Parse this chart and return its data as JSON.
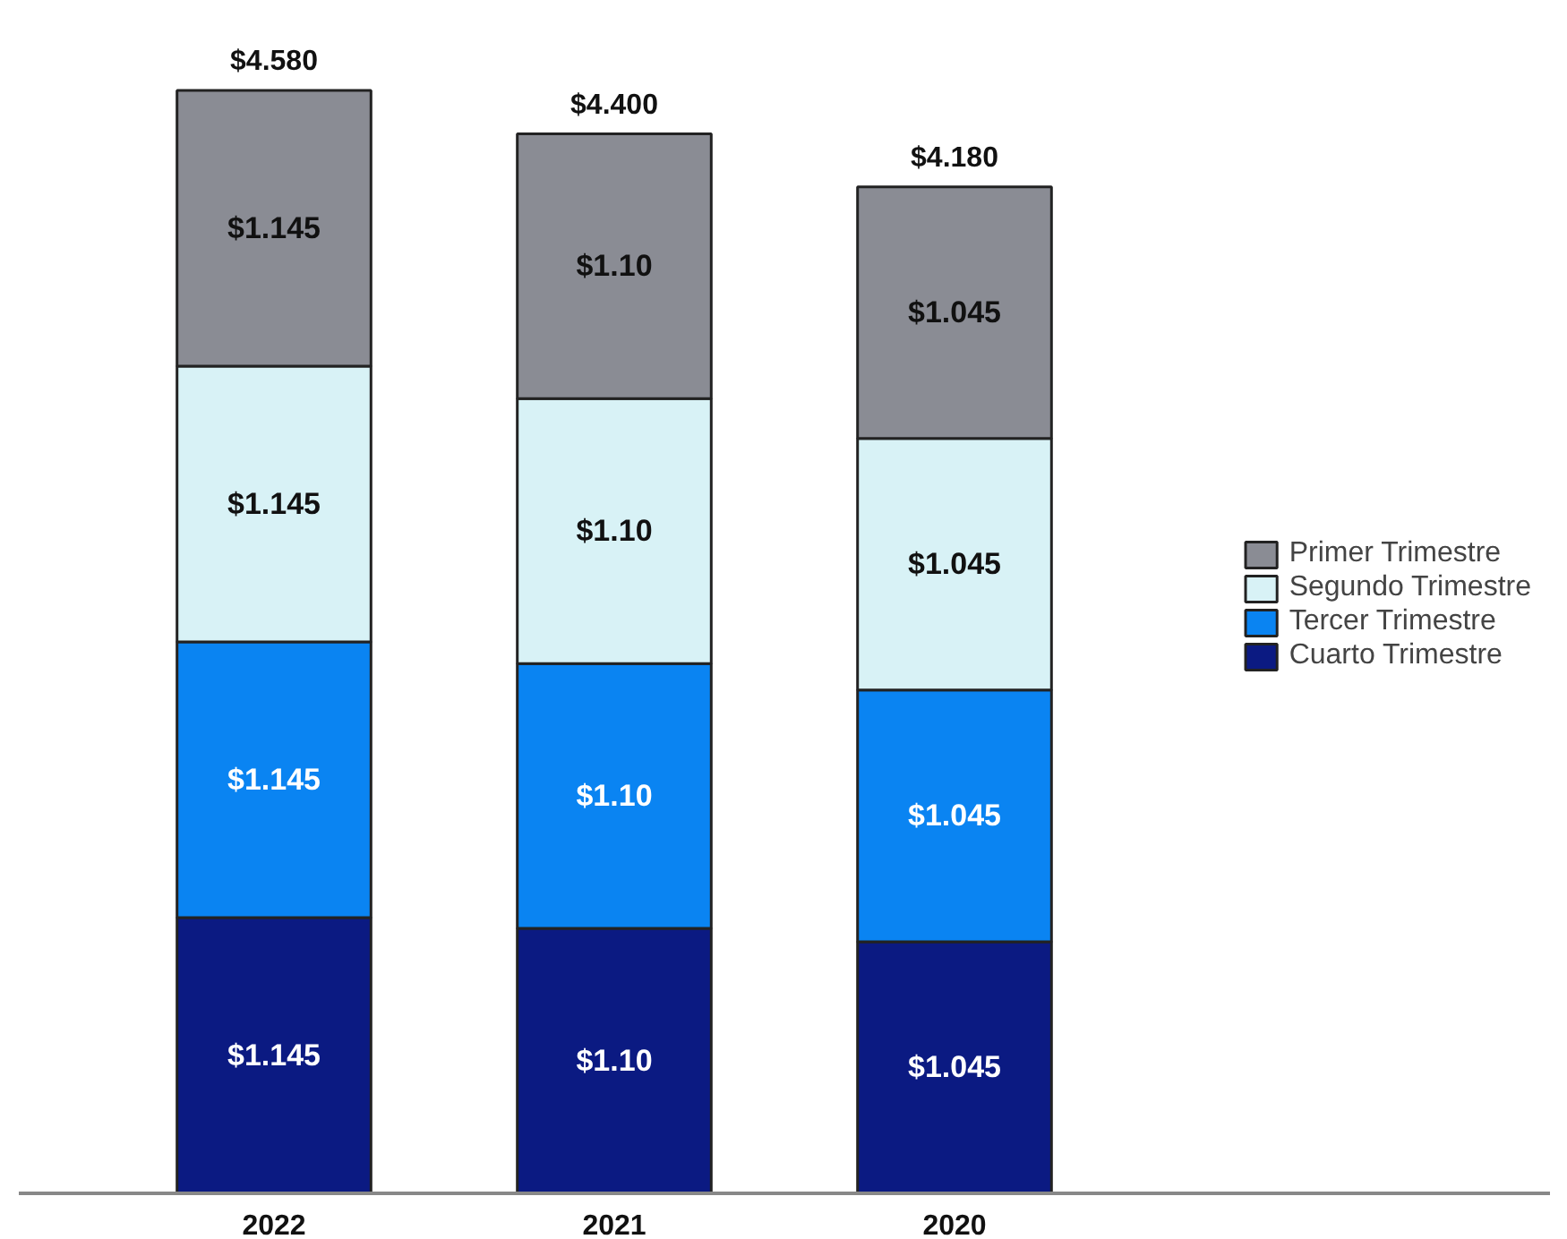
{
  "chart_data": {
    "type": "bar",
    "stacked": true,
    "categories": [
      "2022",
      "2021",
      "2020"
    ],
    "series": [
      {
        "name": "Cuarto Trimestre",
        "color": "#0b1a82",
        "values": [
          1.145,
          1.1,
          1.045
        ],
        "value_labels": [
          "$1.145",
          "$1.10",
          "$1.045"
        ]
      },
      {
        "name": "Tercer Trimestre",
        "color": "#0a84f2",
        "values": [
          1.145,
          1.1,
          1.045
        ],
        "value_labels": [
          "$1.145",
          "$1.10",
          "$1.045"
        ]
      },
      {
        "name": "Segundo Trimestre",
        "color": "#d8f2f6",
        "values": [
          1.145,
          1.1,
          1.045
        ],
        "value_labels": [
          "$1.145",
          "$1.10",
          "$1.045"
        ]
      },
      {
        "name": "Primer Trimestre",
        "color": "#8a8c94",
        "values": [
          1.145,
          1.1,
          1.045
        ],
        "value_labels": [
          "$1.145",
          "$1.10",
          "$1.045"
        ]
      }
    ],
    "totals": [
      "$4.580",
      "$4.400",
      "$4.180"
    ],
    "legend": "right",
    "grid": false
  }
}
